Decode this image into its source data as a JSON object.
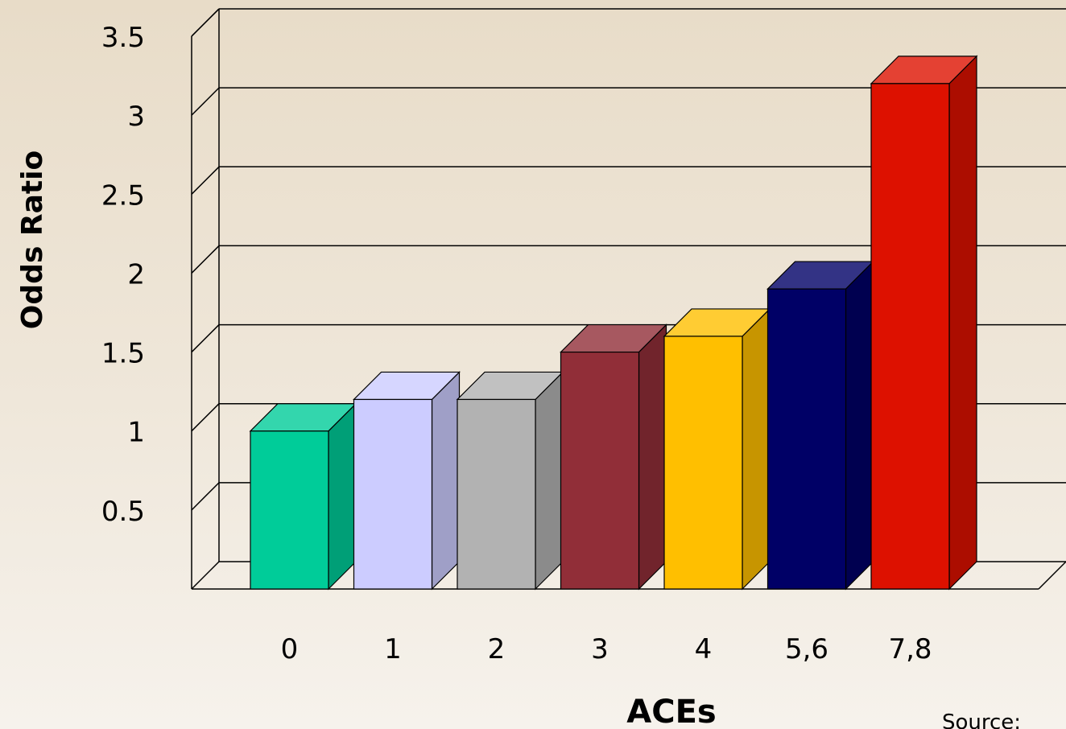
{
  "chart_data": {
    "type": "bar",
    "variant": "3d",
    "title": "",
    "xlabel": "ACEs",
    "ylabel": "Odds Ratio",
    "categories": [
      "0",
      "1",
      "2",
      "3",
      "4",
      "5,6",
      "7,8"
    ],
    "values": [
      1.0,
      1.2,
      1.2,
      1.5,
      1.6,
      1.9,
      3.2
    ],
    "yticks": [
      "0.5",
      "1",
      "1.5",
      "2",
      "2.5",
      "3",
      "3.5"
    ],
    "ylim": [
      0,
      3.5
    ],
    "grid": true,
    "legend": "none",
    "colors": [
      "#00cc99",
      "#ccccff",
      "#b2b2b2",
      "#912e38",
      "#ffbf00",
      "#000066",
      "#dd1100"
    ]
  },
  "footer": {
    "source_label": "Source:"
  }
}
